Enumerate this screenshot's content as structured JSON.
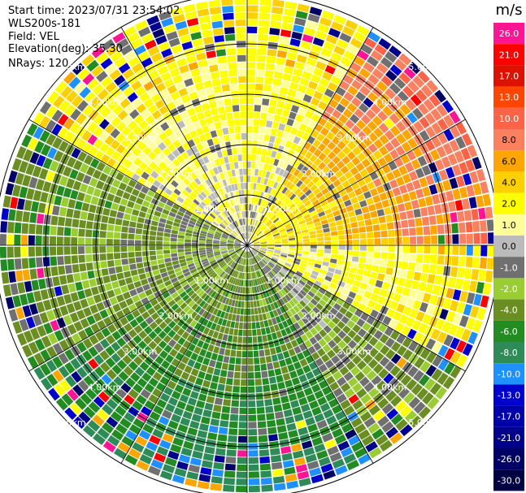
{
  "chart_data": {
    "type": "heatmap",
    "subtype": "polar-ppi",
    "header": {
      "start_time": "Start time: 2023/07/31 23:54:02",
      "instrument": "WLS200s-181",
      "field": "Field: VEL",
      "elevation": "Elevation(deg): 35.30",
      "nrays": "NRays: 120"
    },
    "nrays": 120,
    "max_range_km": 5.0,
    "range_rings": [
      {
        "range_km": 1.0,
        "label": "1.00km"
      },
      {
        "range_km": 2.0,
        "label": "2.00km"
      },
      {
        "range_km": 3.0,
        "label": "3.00km"
      },
      {
        "range_km": 4.0,
        "label": "4.00km"
      },
      {
        "range_km": 5.0,
        "label": "5.00km"
      }
    ],
    "spokes_deg": [
      0,
      30,
      60,
      90,
      120,
      150,
      180,
      210,
      240,
      270,
      300,
      330
    ],
    "dominant_velocity_by_sector": [
      {
        "azimuth_from": 300,
        "azimuth_to": 30,
        "velocity_ms": 3.0
      },
      {
        "azimuth_from": 30,
        "azimuth_to": 90,
        "velocity_ms": 8.0
      },
      {
        "azimuth_from": 90,
        "azimuth_to": 120,
        "velocity_ms": 3.0
      },
      {
        "azimuth_from": 120,
        "azimuth_to": 150,
        "velocity_ms": -2.0
      },
      {
        "azimuth_from": 150,
        "azimuth_to": 210,
        "velocity_ms": -6.0
      },
      {
        "azimuth_from": 210,
        "azimuth_to": 240,
        "velocity_ms": -5.0
      },
      {
        "azimuth_from": 240,
        "azimuth_to": 300,
        "velocity_ms": -3.0
      }
    ],
    "colorbar": {
      "unit": "m/s",
      "labels": [
        "26.0",
        "21.0",
        "17.0",
        "13.0",
        "10.0",
        "8.0",
        "6.0",
        "4.0",
        "2.0",
        "1.0",
        "0.0",
        "-1.0",
        "-2.0",
        "-4.0",
        "-6.0",
        "-8.0",
        "-10.0",
        "-13.0",
        "-17.0",
        "-21.0",
        "-26.0",
        "-30.0"
      ],
      "colors": [
        "#ff1493",
        "#ff0000",
        "#dd1100",
        "#ff4500",
        "#ff6347",
        "#fa8060",
        "#ffa500",
        "#ffd000",
        "#ffff00",
        "#ffff99",
        "#bbbbbb",
        "#707070",
        "#9acd32",
        "#6b8e23",
        "#228b22",
        "#2e8b57",
        "#1e90ff",
        "#0000cd",
        "#0000aa",
        "#00008b",
        "#000066",
        "#000044"
      ]
    }
  }
}
